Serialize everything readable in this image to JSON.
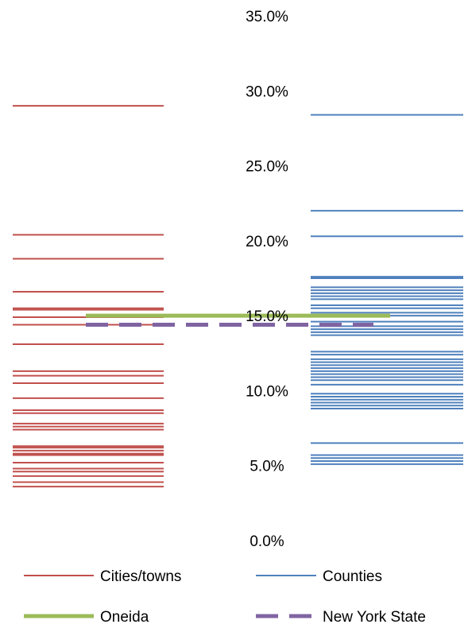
{
  "chart_data": {
    "type": "strip",
    "title": "",
    "xlabel": "",
    "ylabel": "",
    "ylim": [
      0,
      35
    ],
    "yticks": [
      0,
      5,
      10,
      15,
      20,
      25,
      30,
      35
    ],
    "ytick_labels": [
      "0.0%",
      "5.0%",
      "10.0%",
      "15.0%",
      "20.0%",
      "25.0%",
      "30.0%",
      "35.0%"
    ],
    "grid": false,
    "legend_position": "bottom",
    "categories": [
      "Cities/towns",
      "Counties"
    ],
    "series": [
      {
        "name": "Cities/towns",
        "color": "#C0504D",
        "style": "thin",
        "values": [
          29.0,
          20.4,
          18.8,
          16.6,
          15.5,
          15.4,
          14.9,
          14.4,
          13.1,
          11.3,
          11.0,
          10.5,
          9.5,
          8.7,
          8.5,
          7.8,
          7.6,
          7.4,
          6.3,
          6.2,
          6.0,
          5.8,
          5.7,
          5.2,
          4.8,
          4.6,
          4.3,
          3.9,
          3.6
        ]
      },
      {
        "name": "Counties",
        "color": "#4F81BD",
        "style": "thin",
        "values": [
          28.4,
          22.0,
          20.3,
          17.6,
          17.5,
          16.9,
          16.7,
          16.5,
          16.3,
          16.1,
          15.7,
          15.5,
          15.2,
          15.0,
          14.6,
          14.3,
          14.1,
          13.9,
          13.7,
          12.6,
          12.4,
          12.1,
          11.9,
          11.7,
          11.5,
          11.3,
          11.1,
          10.9,
          10.7,
          10.4,
          9.8,
          9.6,
          9.4,
          9.2,
          9.0,
          8.8,
          6.5,
          5.7,
          5.5,
          5.3,
          5.1
        ]
      },
      {
        "name": "Oneida",
        "color": "#9BBB59",
        "style": "thick",
        "values": [
          15.0
        ],
        "span": [
          "Cities/towns",
          "Counties"
        ]
      },
      {
        "name": "New York State",
        "color": "#8064A2",
        "style": "dashed",
        "values": [
          14.4
        ],
        "span": [
          "Cities/towns",
          "Counties"
        ]
      }
    ]
  }
}
